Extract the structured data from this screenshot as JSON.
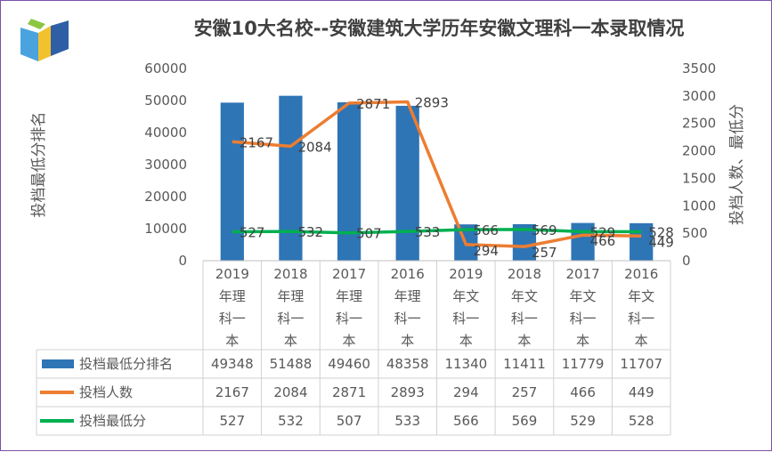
{
  "chart_data": {
    "type": "bar",
    "title": "安徽10大名校--安徽建筑大学历年安徽文理科一本录取情况",
    "ylabel": "投档最低分排名",
    "y2label": "投档人数、最低分",
    "categories": [
      [
        "2019",
        "年理",
        "科一",
        "本"
      ],
      [
        "2018",
        "年理",
        "科一",
        "本"
      ],
      [
        "2017",
        "年理",
        "科一",
        "本"
      ],
      [
        "2016",
        "年理",
        "科一",
        "本"
      ],
      [
        "2019",
        "年文",
        "科一",
        "本"
      ],
      [
        "2018",
        "年文",
        "科一",
        "本"
      ],
      [
        "2017",
        "年文",
        "科一",
        "本"
      ],
      [
        "2016",
        "年文",
        "科一",
        "本"
      ]
    ],
    "ylim": [
      0,
      60000
    ],
    "yticks": [
      "60000",
      "50000",
      "40000",
      "30000",
      "20000",
      "10000",
      "0"
    ],
    "y2lim": [
      0,
      3500
    ],
    "y2ticks": [
      "3500",
      "3000",
      "2500",
      "2000",
      "1500",
      "1000",
      "500",
      "0"
    ],
    "grid": false,
    "legend": "data-table",
    "series": [
      {
        "name": "投档最低分排名",
        "type": "bar",
        "axis": "left",
        "color": "#2e75b6",
        "values": [
          49348,
          51488,
          49460,
          48358,
          11340,
          11411,
          11779,
          11707
        ]
      },
      {
        "name": "投档人数",
        "type": "line",
        "axis": "right",
        "color": "#ed7d31",
        "values": [
          2167,
          2084,
          2871,
          2893,
          294,
          257,
          466,
          449
        ]
      },
      {
        "name": "投档最低分",
        "type": "line",
        "axis": "right",
        "color": "#00b050",
        "values": [
          527,
          532,
          507,
          533,
          566,
          569,
          529,
          528
        ]
      }
    ]
  }
}
